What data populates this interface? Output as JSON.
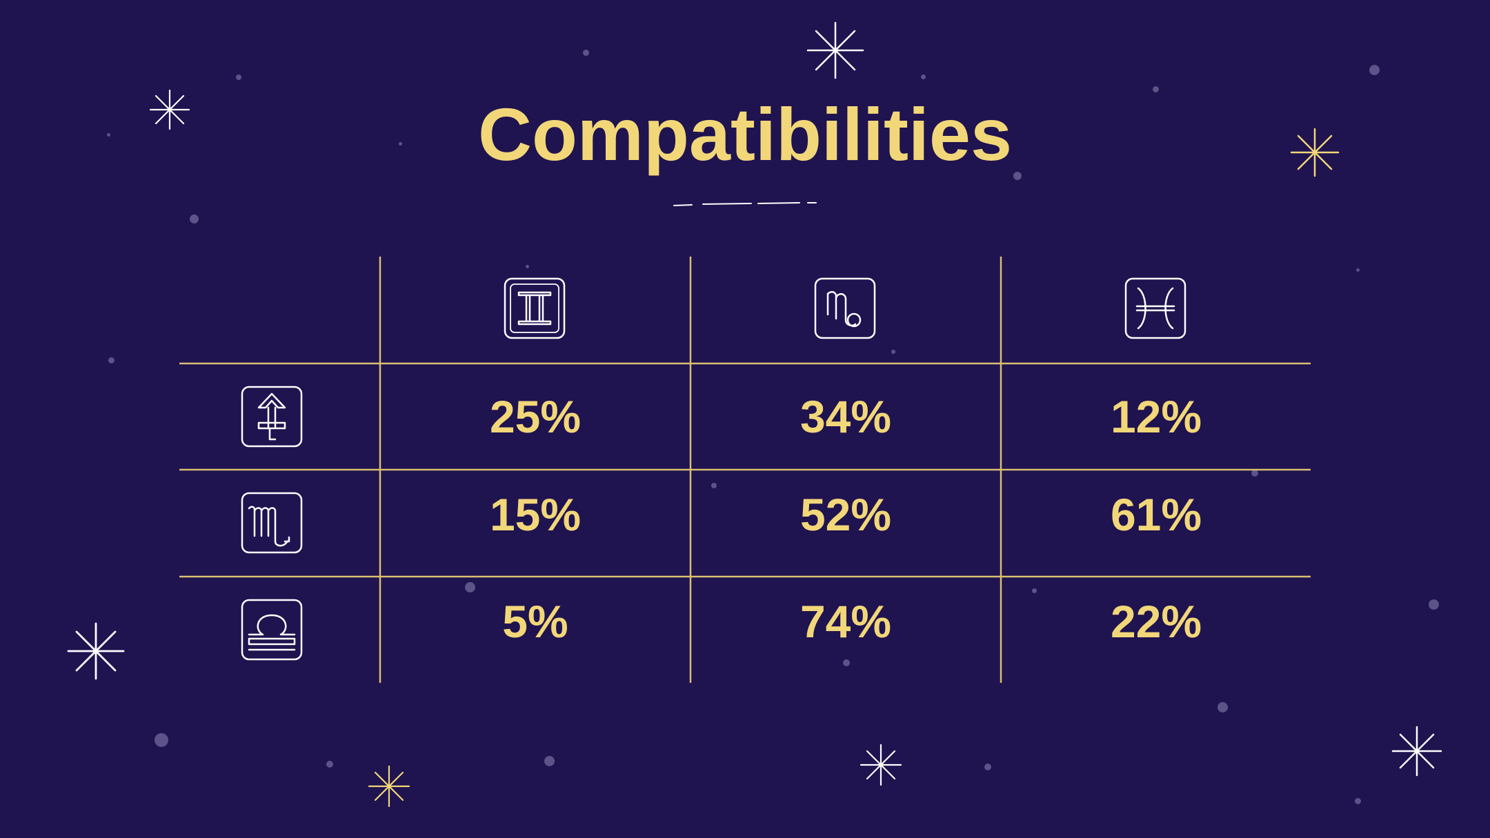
{
  "slide": {
    "title": "Compatibilities",
    "colors": {
      "background": "#1f1350",
      "accent": "#f2d779",
      "line": "#d9c070",
      "icon": "#ffffff"
    }
  },
  "table": {
    "column_icons": [
      "gemini-icon",
      "capricorn-icon",
      "pisces-icon"
    ],
    "rows": [
      {
        "icon": "sagittarius-icon",
        "values": [
          "25%",
          "34%",
          "12%"
        ]
      },
      {
        "icon": "scorpio-icon",
        "values": [
          "15%",
          "52%",
          "61%"
        ]
      },
      {
        "icon": "libra-icon",
        "values": [
          "5%",
          "74%",
          "22%"
        ]
      }
    ]
  }
}
